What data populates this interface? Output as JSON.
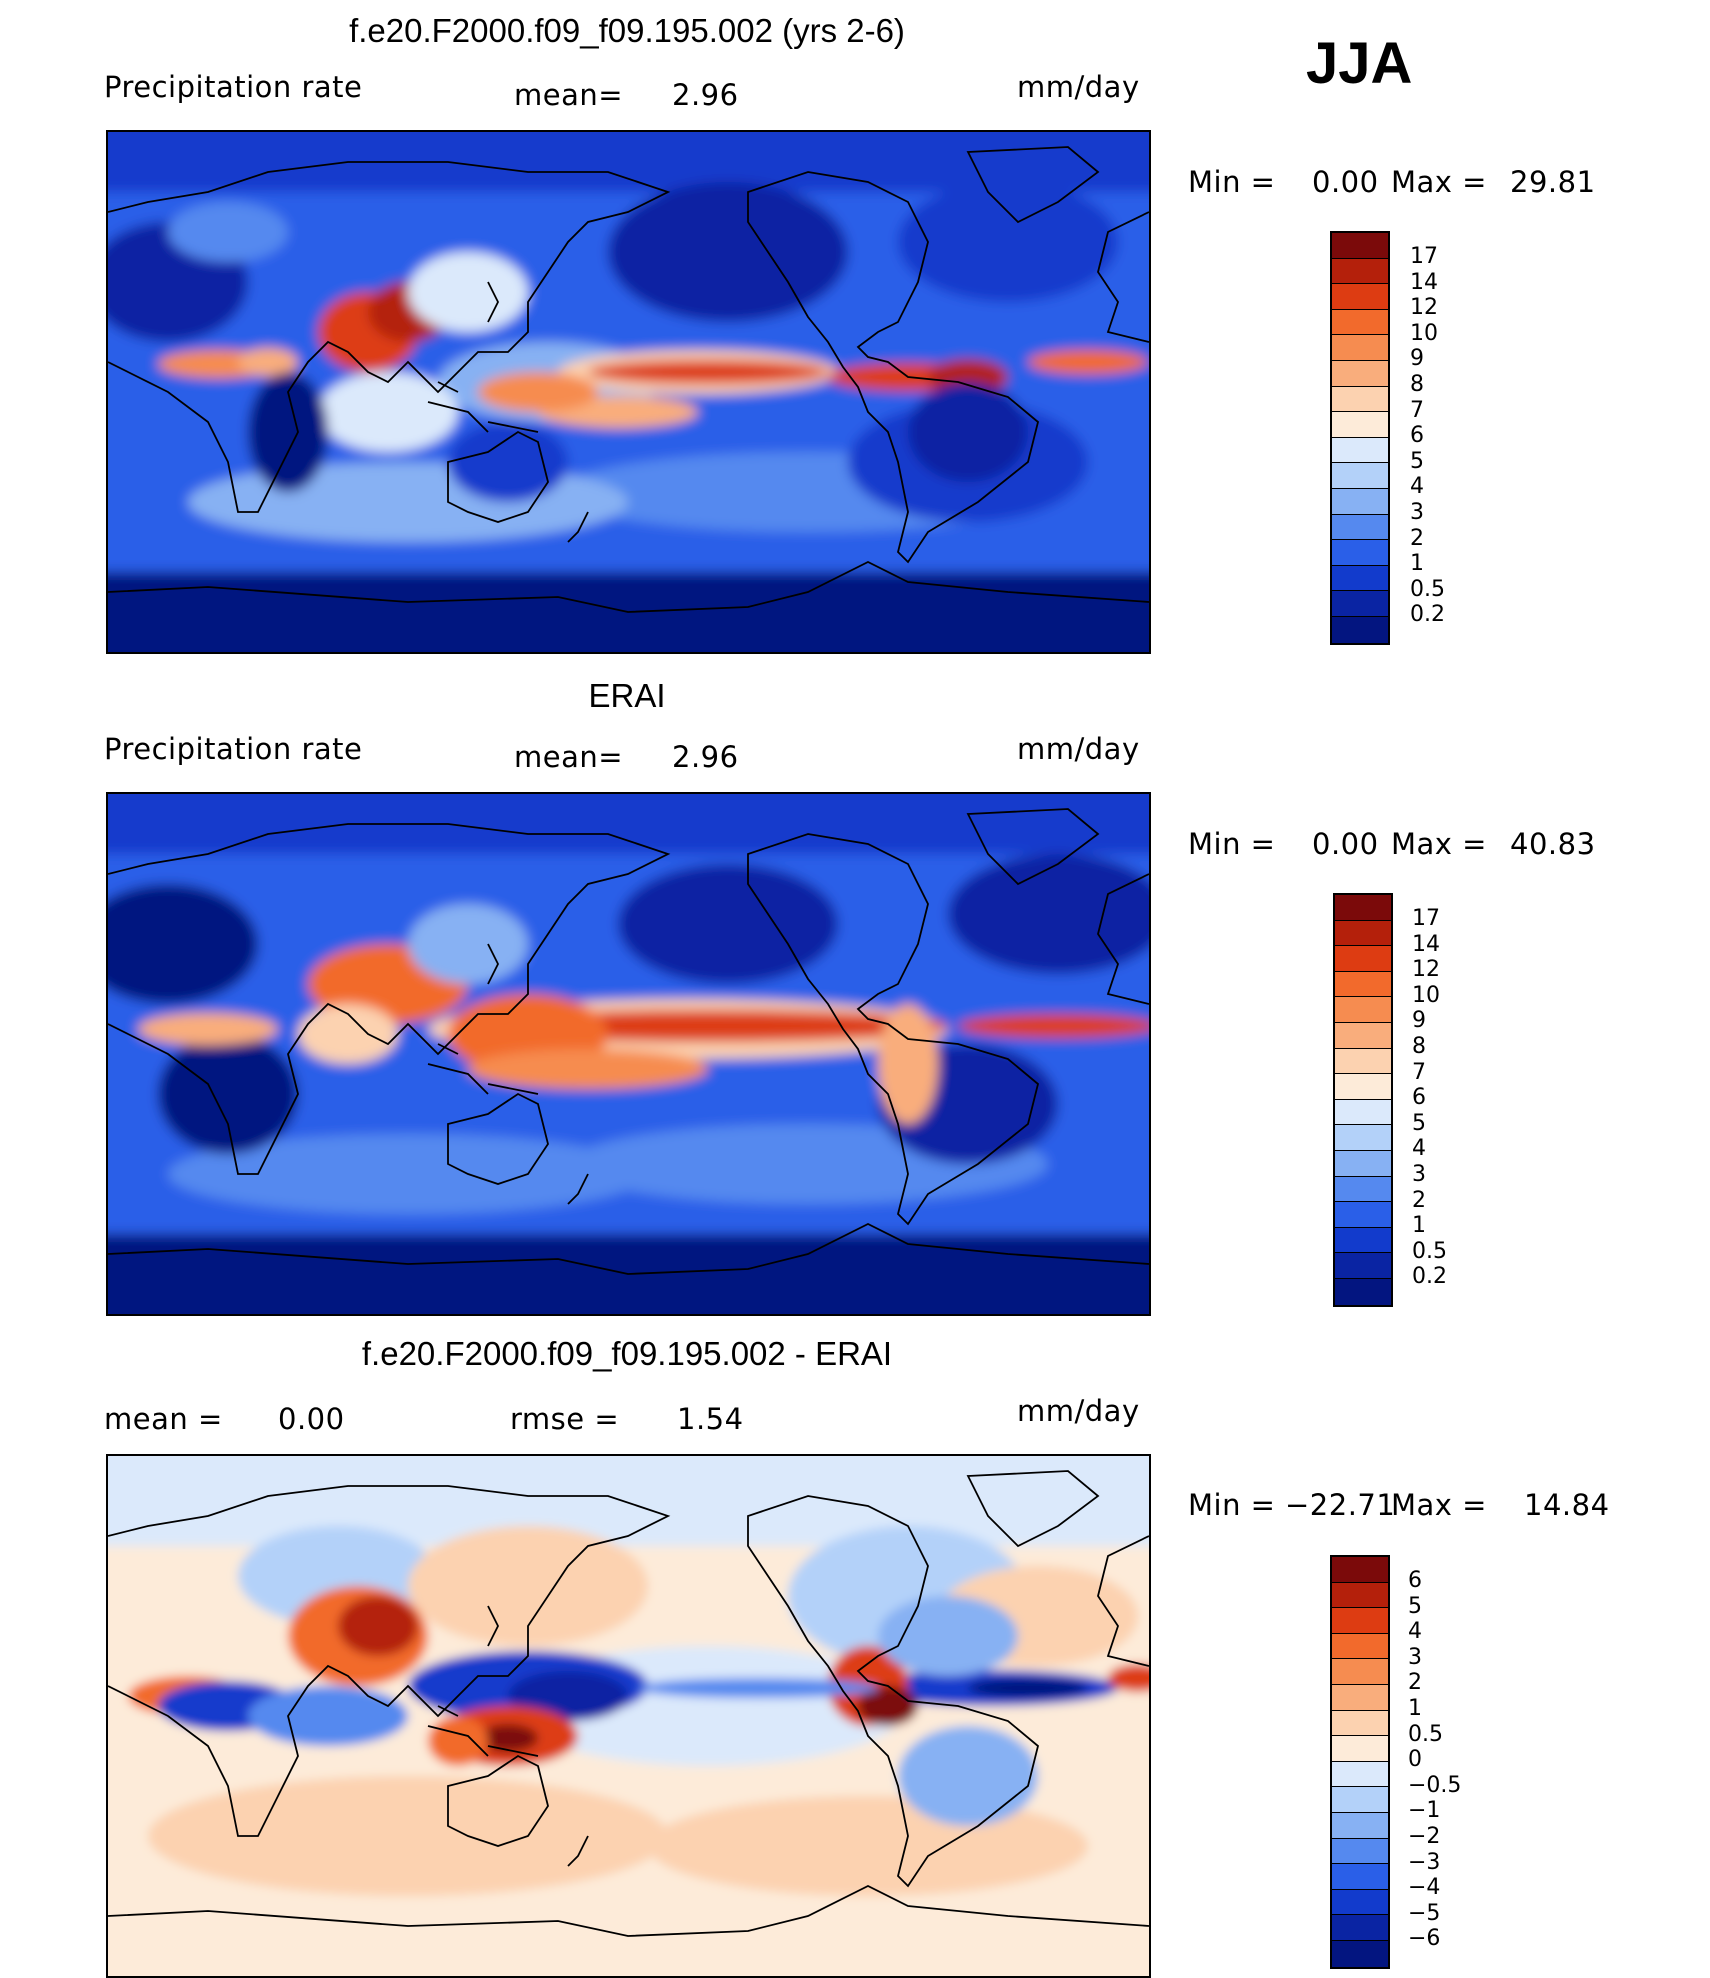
{
  "season": "JJA",
  "panels": [
    {
      "title": "f.e20.F2000.f09_f09.195.002 (yrs 2-6)",
      "left_label": "Precipitation  rate",
      "mid_label": "mean=",
      "mid_value": "2.96",
      "units": "mm/day",
      "min_label": "Min  =",
      "min_value": "0.00",
      "max_label": "Max  =",
      "max_value": "29.81",
      "legend": [
        "17",
        "14",
        "12",
        "10",
        "9",
        "8",
        "7",
        "6",
        "5",
        "4",
        "3",
        "2",
        "1",
        "0.5",
        "0.2"
      ],
      "legend_colors": [
        "#7b0a0a",
        "#b4200b",
        "#dd3c12",
        "#f26a2c",
        "#f68c50",
        "#f9ad7c",
        "#fcd2b0",
        "#fdebd9",
        "#dbe9fb",
        "#b3d1f9",
        "#87b1f3",
        "#5589ef",
        "#2a5fe8",
        "#123bcc",
        "#0a24a3",
        "#031580"
      ]
    },
    {
      "title": "ERAI",
      "left_label": "Precipitation  rate",
      "mid_label": "mean=",
      "mid_value": "2.96",
      "units": "mm/day",
      "min_label": "Min  =",
      "min_value": "0.00",
      "max_label": "Max  =",
      "max_value": "40.83",
      "legend": [
        "17",
        "14",
        "12",
        "10",
        "9",
        "8",
        "7",
        "6",
        "5",
        "4",
        "3",
        "2",
        "1",
        "0.5",
        "0.2"
      ],
      "legend_colors": [
        "#7b0a0a",
        "#b4200b",
        "#dd3c12",
        "#f26a2c",
        "#f68c50",
        "#f9ad7c",
        "#fcd2b0",
        "#fdebd9",
        "#dbe9fb",
        "#b3d1f9",
        "#87b1f3",
        "#5589ef",
        "#2a5fe8",
        "#123bcc",
        "#0a24a3",
        "#031580"
      ]
    },
    {
      "title": "f.e20.F2000.f09_f09.195.002 - ERAI",
      "left_label": "mean  =",
      "left_value": "0.00",
      "mid_label": "rmse  =",
      "mid_value": "1.54",
      "units": "mm/day",
      "min_label": "Min  =",
      "min_value": "−22.71",
      "max_label": "Max  =",
      "max_value": "14.84",
      "legend": [
        "6",
        "5",
        "4",
        "3",
        "2",
        "1",
        "0.5",
        "0",
        "−0.5",
        "−1",
        "−2",
        "−3",
        "−4",
        "−5",
        "−6"
      ],
      "legend_colors": [
        "#7b0a0a",
        "#b4200b",
        "#dd3c12",
        "#f26a2c",
        "#f68c50",
        "#f9ad7c",
        "#fcd2b0",
        "#fdebd9",
        "#dbe9fb",
        "#b3d1f9",
        "#87b1f3",
        "#5589ef",
        "#2a5fe8",
        "#123bcc",
        "#0a24a3",
        "#031580"
      ]
    }
  ]
}
